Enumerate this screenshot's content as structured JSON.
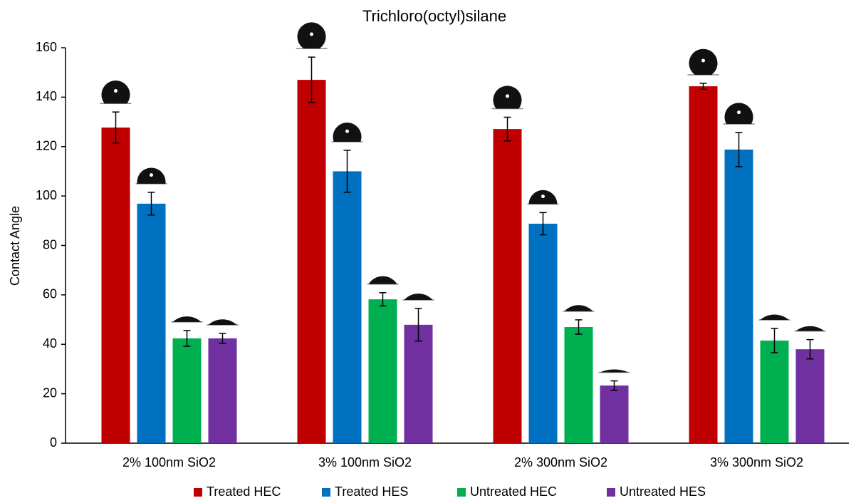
{
  "chart_data": {
    "type": "bar",
    "title": "Trichloro(octyl)silane",
    "y_label": "Contact Angle",
    "categories": [
      "2% 100nm SiO2",
      "3% 100nm SiO2",
      "2% 300nm SiO2",
      "3% 300nm SiO2"
    ],
    "series": [
      {
        "name": "Treated HEC",
        "color": "#c00000",
        "values": [
          127.7,
          147,
          127.1,
          144.4
        ],
        "errors": [
          6.3,
          9.2,
          4.8,
          1.2
        ]
      },
      {
        "name": "Treated HES",
        "color": "#0070c0",
        "values": [
          96.9,
          110,
          88.8,
          118.8
        ],
        "errors": [
          4.6,
          8.5,
          4.5,
          6.9
        ]
      },
      {
        "name": "Untreated HEC",
        "color": "#00b050",
        "values": [
          42.4,
          58.2,
          47,
          41.5
        ],
        "errors": [
          3.2,
          2.7,
          2.9,
          4.9
        ]
      },
      {
        "name": "Untreated HES",
        "color": "#7030a0",
        "values": [
          42.4,
          47.9,
          23.3,
          38
        ],
        "errors": [
          2,
          6.6,
          1.9,
          3.9
        ]
      }
    ],
    "ylim": [
      0,
      160
    ],
    "yticks": [
      0,
      20,
      40,
      60,
      80,
      100,
      120,
      140,
      160
    ],
    "legend": "bottom"
  }
}
